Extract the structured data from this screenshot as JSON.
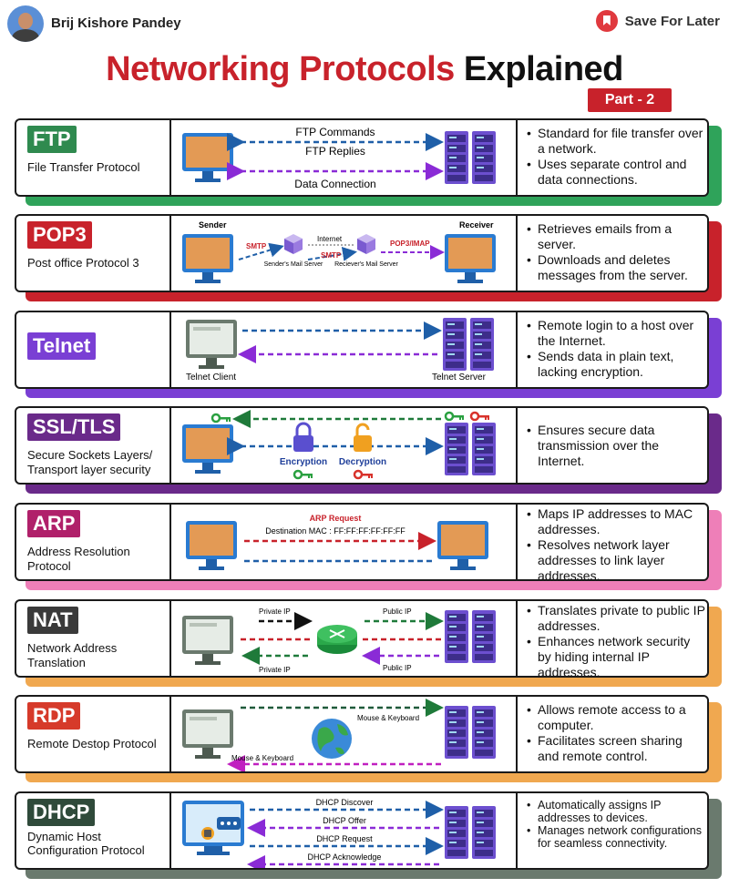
{
  "header": {
    "author": "Brij Kishore Pandey",
    "save_label": "Save For Later",
    "title_red": "Networking Protocols",
    "title_black": "Explained",
    "part": "Part - 2"
  },
  "colors": {
    "red": "#c8222b",
    "ftp": "#2f8a4f",
    "pop3": "#c8222b",
    "telnet": "#7a3fd4",
    "ssl": "#6a2a8a",
    "arp": "#b0206a",
    "nat": "#3a3a3a",
    "rdp": "#d63a2a",
    "dhcp": "#2f4a3a"
  },
  "protocols": [
    {
      "abbr": "FTP",
      "name": "File Transfer Protocol",
      "labels": [
        "FTP Commands",
        "FTP Replies",
        "Data Connection"
      ],
      "points": [
        "Standard for file transfer over a network.",
        "Uses separate control and data connections."
      ]
    },
    {
      "abbr": "POP3",
      "name": "Post office Protocol 3",
      "labels": [
        "Sender",
        "Receiver",
        "SMTP",
        "Internet",
        "SMTP",
        "POP3/IMAP",
        "Sender's Mail Server",
        "Reciever's Mail Server"
      ],
      "points": [
        "Retrieves emails from a server.",
        "Downloads and deletes messages from the server."
      ]
    },
    {
      "abbr": "Telnet",
      "name": "",
      "labels": [
        "Telnet Client",
        "Telnet Server"
      ],
      "points": [
        "Remote login to a host over the Internet.",
        "Sends data in plain text, lacking encryption."
      ]
    },
    {
      "abbr": "SSL/TLS",
      "name": "Secure Sockets Layers/ Transport layer security",
      "labels": [
        "Encryption",
        "Decryption"
      ],
      "points": [
        "Ensures secure data transmission over the Internet."
      ]
    },
    {
      "abbr": "ARP",
      "name": "Address Resolution Protocol",
      "labels": [
        "ARP Request",
        "Destination MAC : FF:FF:FF:FF:FF:FF"
      ],
      "points": [
        "Maps IP addresses to MAC addresses.",
        "Resolves network layer addresses to link layer addresses."
      ]
    },
    {
      "abbr": "NAT",
      "name": "Network Address Translation",
      "labels": [
        "Private IP",
        "Public IP",
        "Public IP",
        "Private IP"
      ],
      "points": [
        "Translates private to public IP addresses.",
        "Enhances network security by hiding internal IP addresses."
      ]
    },
    {
      "abbr": "RDP",
      "name": "Remote Destop Protocol",
      "labels": [
        "Mouse & Keyboard",
        "Mouse & Keyboard"
      ],
      "points": [
        "Allows remote access to a computer.",
        "Facilitates screen sharing and remote control."
      ]
    },
    {
      "abbr": "DHCP",
      "name": "Dynamic Host Configuration Protocol",
      "labels": [
        "DHCP Discover",
        "DHCP Offer",
        "DHCP Request",
        "DHCP Acknowledge"
      ],
      "points": [
        "Automatically assigns IP addresses to devices.",
        "Manages network configurations for seamless connectivity."
      ]
    }
  ]
}
